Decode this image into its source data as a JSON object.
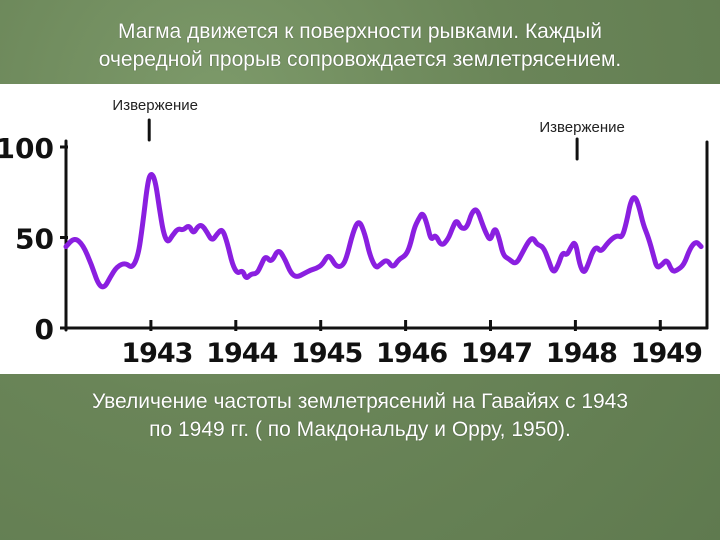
{
  "caption_top": {
    "line1": "Магма движется к поверхности рывками. Каждый",
    "line2": "очередной прорыв сопровождается землетрясением."
  },
  "caption_bottom": {
    "line1": "Увеличение частоты землетрясений на Гавайях с 1943",
    "line2": "по 1949 гг. ( по Макдональду и Орру, 1950)."
  },
  "colors": {
    "series": "#8a1fe0",
    "axis": "#111111",
    "background": "#6f8a5e"
  },
  "chart_data": {
    "type": "line",
    "title": "",
    "xlabel": "",
    "ylabel": "",
    "ylim": [
      0,
      100
    ],
    "yticks": [
      "0",
      "50",
      "100"
    ],
    "ytick_values": [
      0,
      50,
      100
    ],
    "xlim": [
      1942,
      1949.55
    ],
    "xtick_labels": [
      "1943",
      "1944",
      "1945",
      "1946",
      "1947",
      "1948",
      "1949"
    ],
    "xtick_values": [
      1943,
      1944,
      1945,
      1946,
      1947,
      1948,
      1949
    ],
    "grid": false,
    "annotations": [
      {
        "text": "Извержение",
        "x": 1942.98
      },
      {
        "text": "Извержение",
        "x": 1948.02
      }
    ],
    "series": [
      {
        "values": [
          [
            1942.0,
            45
          ],
          [
            1942.1,
            50
          ],
          [
            1942.2,
            46
          ],
          [
            1942.3,
            35
          ],
          [
            1942.38,
            24
          ],
          [
            1942.45,
            22
          ],
          [
            1942.52,
            28
          ],
          [
            1942.6,
            34
          ],
          [
            1942.7,
            36
          ],
          [
            1942.78,
            33
          ],
          [
            1942.85,
            40
          ],
          [
            1942.9,
            56
          ],
          [
            1942.96,
            80
          ],
          [
            1943.0,
            86
          ],
          [
            1943.05,
            82
          ],
          [
            1943.1,
            66
          ],
          [
            1943.15,
            52
          ],
          [
            1943.2,
            47
          ],
          [
            1943.25,
            51
          ],
          [
            1943.32,
            55
          ],
          [
            1943.38,
            54
          ],
          [
            1943.45,
            57
          ],
          [
            1943.5,
            52
          ],
          [
            1943.55,
            56
          ],
          [
            1943.6,
            57
          ],
          [
            1943.66,
            53
          ],
          [
            1943.72,
            48
          ],
          [
            1943.78,
            52
          ],
          [
            1943.84,
            55
          ],
          [
            1943.9,
            47
          ],
          [
            1943.96,
            35
          ],
          [
            1944.02,
            30
          ],
          [
            1944.08,
            32
          ],
          [
            1944.12,
            27
          ],
          [
            1944.18,
            30
          ],
          [
            1944.25,
            30
          ],
          [
            1944.3,
            35
          ],
          [
            1944.35,
            40
          ],
          [
            1944.42,
            36
          ],
          [
            1944.5,
            44
          ],
          [
            1944.58,
            38
          ],
          [
            1944.65,
            30
          ],
          [
            1944.72,
            28
          ],
          [
            1944.8,
            30
          ],
          [
            1944.88,
            32
          ],
          [
            1944.95,
            33
          ],
          [
            1945.02,
            35
          ],
          [
            1945.08,
            40
          ],
          [
            1945.12,
            39
          ],
          [
            1945.18,
            34
          ],
          [
            1945.25,
            34
          ],
          [
            1945.3,
            38
          ],
          [
            1945.38,
            53
          ],
          [
            1945.45,
            60
          ],
          [
            1945.52,
            52
          ],
          [
            1945.58,
            40
          ],
          [
            1945.65,
            33
          ],
          [
            1945.7,
            35
          ],
          [
            1945.78,
            38
          ],
          [
            1945.85,
            33
          ],
          [
            1945.92,
            38
          ],
          [
            1946.0,
            40
          ],
          [
            1946.05,
            45
          ],
          [
            1946.1,
            55
          ],
          [
            1946.15,
            60
          ],
          [
            1946.2,
            64
          ],
          [
            1946.25,
            58
          ],
          [
            1946.3,
            48
          ],
          [
            1946.35,
            52
          ],
          [
            1946.42,
            45
          ],
          [
            1946.5,
            49
          ],
          [
            1946.55,
            55
          ],
          [
            1946.6,
            60
          ],
          [
            1946.65,
            55
          ],
          [
            1946.72,
            55
          ],
          [
            1946.78,
            64
          ],
          [
            1946.84,
            66
          ],
          [
            1946.9,
            58
          ],
          [
            1946.95,
            52
          ],
          [
            1947.0,
            48
          ],
          [
            1947.05,
            56
          ],
          [
            1947.1,
            50
          ],
          [
            1947.15,
            40
          ],
          [
            1947.22,
            38
          ],
          [
            1947.3,
            35
          ],
          [
            1947.38,
            42
          ],
          [
            1947.45,
            48
          ],
          [
            1947.5,
            50
          ],
          [
            1947.55,
            46
          ],
          [
            1947.62,
            45
          ],
          [
            1947.68,
            38
          ],
          [
            1947.74,
            30
          ],
          [
            1947.8,
            35
          ],
          [
            1947.85,
            42
          ],
          [
            1947.9,
            40
          ],
          [
            1947.95,
            45
          ],
          [
            1948.0,
            48
          ],
          [
            1948.05,
            35
          ],
          [
            1948.1,
            30
          ],
          [
            1948.15,
            35
          ],
          [
            1948.2,
            42
          ],
          [
            1948.25,
            45
          ],
          [
            1948.3,
            42
          ],
          [
            1948.38,
            47
          ],
          [
            1948.45,
            50
          ],
          [
            1948.5,
            51
          ],
          [
            1948.55,
            50
          ],
          [
            1948.6,
            58
          ],
          [
            1948.65,
            70
          ],
          [
            1948.7,
            73
          ],
          [
            1948.75,
            67
          ],
          [
            1948.8,
            57
          ],
          [
            1948.86,
            50
          ],
          [
            1948.92,
            40
          ],
          [
            1948.96,
            33
          ],
          [
            1949.02,
            35
          ],
          [
            1949.08,
            38
          ],
          [
            1949.14,
            31
          ],
          [
            1949.2,
            32
          ],
          [
            1949.28,
            35
          ],
          [
            1949.35,
            44
          ],
          [
            1949.42,
            48
          ],
          [
            1949.48,
            45
          ]
        ]
      }
    ]
  }
}
